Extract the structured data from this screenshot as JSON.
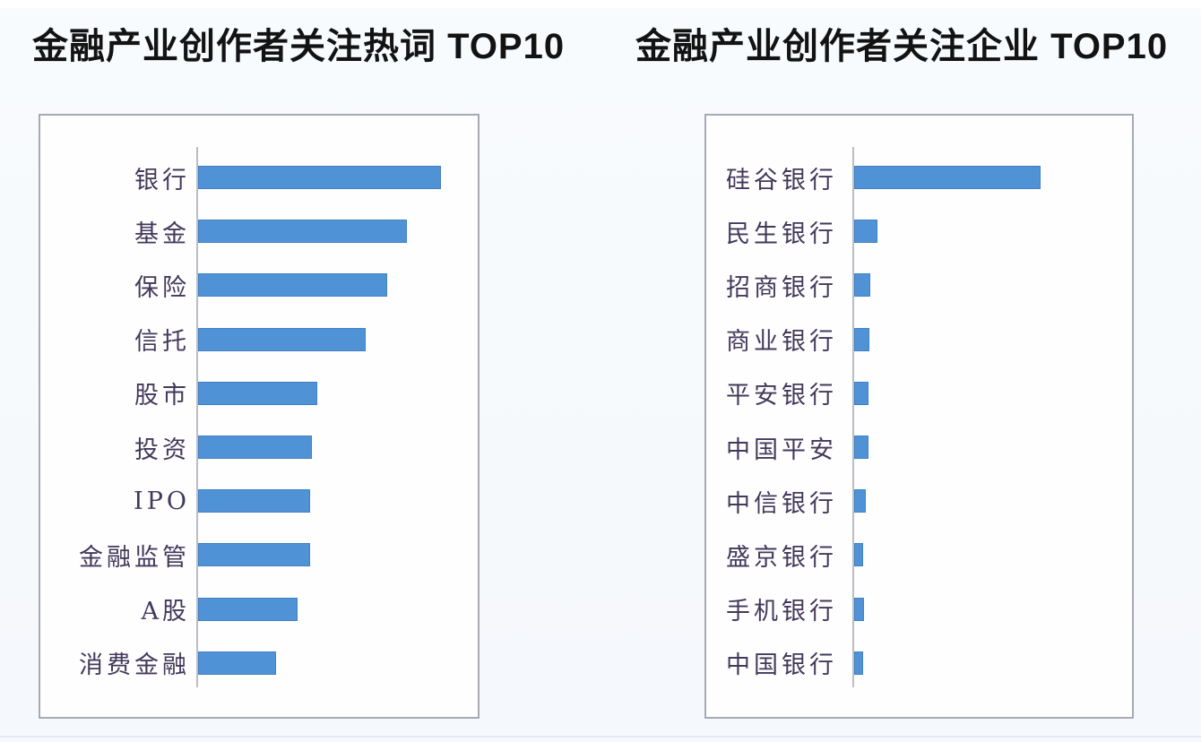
{
  "page": {
    "background": "#f7fafd",
    "description": "Two horizontal bar charts side by side, no numeric axis labels"
  },
  "colors": {
    "bar": "#4f93d6",
    "bar_edge": "#346daa",
    "category_text": "#43395a",
    "title_text": "#131313",
    "panel_border": "#a7aab4",
    "axis_line": "#b9bdc6",
    "panel_background": "#fefeff",
    "page_background": "#f7fafd"
  },
  "chart_data": [
    {
      "type": "bar",
      "orientation": "horizontal",
      "title": "金融产业创作者关注热词 TOP10",
      "categories": [
        "银行",
        "基金",
        "保险",
        "信托",
        "股市",
        "投资",
        "IPO",
        "金融监管",
        "A股",
        "消费金融"
      ],
      "values": [
        100,
        86,
        78,
        69,
        49,
        47,
        46,
        46,
        41,
        32
      ],
      "value_note": "Relative bar lengths; axis is unlabeled, top item normalized to 100",
      "xlabel": "",
      "ylabel": "",
      "xlim": [
        0,
        116
      ],
      "grid": false,
      "legend": false,
      "bar_color": "#4f93d6"
    },
    {
      "type": "bar",
      "orientation": "horizontal",
      "title": "金融产业创作者关注企业 TOP10",
      "categories": [
        "硅谷银行",
        "民生银行",
        "招商银行",
        "商业银行",
        "平安银行",
        "中国平安",
        "中信银行",
        "盛京银行",
        "手机银行",
        "中国银行"
      ],
      "values": [
        100,
        12.5,
        8.7,
        8.2,
        7.7,
        7.7,
        6.3,
        4.8,
        5.4,
        5.0
      ],
      "value_note": "Relative bar lengths; axis is unlabeled, top item normalized to 100",
      "xlabel": "",
      "ylabel": "",
      "xlim": [
        0,
        150
      ],
      "grid": false,
      "legend": false,
      "bar_color": "#4f93d6"
    }
  ]
}
